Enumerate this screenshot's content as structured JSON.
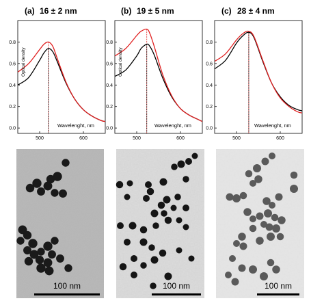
{
  "chart_data": [
    {
      "type": "line",
      "panel_label": "(a)",
      "title": "16 ± 2 nm",
      "xlabel": "Wavelenght, nm",
      "ylabel": "Optical density",
      "xlim": [
        450,
        650
      ],
      "ylim": [
        -0.05,
        1.0
      ],
      "x_ticks": [
        500,
        600
      ],
      "y_ticks": [
        0.0,
        0.2,
        0.4,
        0.6,
        0.8
      ],
      "series": [
        {
          "color": "#000000",
          "peak_x": 520,
          "peak_y": 0.74,
          "x": [
            450,
            475,
            500,
            510,
            520,
            530,
            540,
            560,
            580,
            600,
            620,
            640,
            650
          ],
          "y": [
            0.4,
            0.47,
            0.63,
            0.7,
            0.74,
            0.71,
            0.62,
            0.42,
            0.27,
            0.17,
            0.11,
            0.07,
            0.06
          ]
        },
        {
          "color": "#e02020",
          "peak_x": 520,
          "peak_y": 0.8,
          "x": [
            450,
            475,
            500,
            510,
            520,
            530,
            540,
            560,
            580,
            600,
            620,
            640,
            650
          ],
          "y": [
            0.52,
            0.6,
            0.73,
            0.78,
            0.8,
            0.76,
            0.65,
            0.43,
            0.27,
            0.17,
            0.11,
            0.07,
            0.06
          ]
        }
      ]
    },
    {
      "type": "line",
      "panel_label": "(b)",
      "title": "19 ± 5 nm",
      "xlabel": "Wavelenght, nm",
      "ylabel": "Optical density",
      "xlim": [
        450,
        650
      ],
      "ylim": [
        -0.05,
        1.0
      ],
      "x_ticks": [
        500,
        600
      ],
      "y_ticks": [
        0.0,
        0.2,
        0.4,
        0.6,
        0.8
      ],
      "series": [
        {
          "color": "#000000",
          "peak_x": 523,
          "peak_y": 0.78,
          "x": [
            450,
            475,
            500,
            510,
            523,
            530,
            540,
            560,
            580,
            600,
            620,
            640,
            650
          ],
          "y": [
            0.48,
            0.54,
            0.67,
            0.74,
            0.78,
            0.76,
            0.68,
            0.46,
            0.29,
            0.18,
            0.12,
            0.08,
            0.06
          ]
        },
        {
          "color": "#e02020",
          "peak_x": 523,
          "peak_y": 0.92,
          "x": [
            450,
            475,
            500,
            510,
            523,
            530,
            540,
            560,
            580,
            600,
            620,
            640,
            650
          ],
          "y": [
            0.67,
            0.74,
            0.86,
            0.9,
            0.92,
            0.88,
            0.76,
            0.49,
            0.3,
            0.18,
            0.12,
            0.08,
            0.06
          ]
        }
      ]
    },
    {
      "type": "line",
      "panel_label": "(c)",
      "title": "28 ± 4 nm",
      "xlabel": "Wavelenght, nm",
      "ylabel": "",
      "xlim": [
        450,
        650
      ],
      "ylim": [
        -0.05,
        1.0
      ],
      "x_ticks": [
        500,
        600
      ],
      "y_ticks": [
        0.0,
        0.2,
        0.4,
        0.6,
        0.8
      ],
      "series": [
        {
          "color": "#000000",
          "peak_x": 528,
          "peak_y": 0.89,
          "x": [
            450,
            475,
            500,
            515,
            528,
            540,
            560,
            580,
            600,
            620,
            640,
            650
          ],
          "y": [
            0.55,
            0.63,
            0.79,
            0.86,
            0.89,
            0.84,
            0.62,
            0.42,
            0.29,
            0.21,
            0.17,
            0.16
          ]
        },
        {
          "color": "#e02020",
          "peak_x": 528,
          "peak_y": 0.9,
          "x": [
            450,
            475,
            500,
            515,
            528,
            540,
            560,
            580,
            600,
            620,
            640,
            650
          ],
          "y": [
            0.62,
            0.69,
            0.82,
            0.88,
            0.9,
            0.85,
            0.63,
            0.42,
            0.28,
            0.2,
            0.15,
            0.14
          ]
        }
      ]
    }
  ],
  "micrographs": [
    {
      "scale_label": "100 nm"
    },
    {
      "scale_label": "100 nm"
    },
    {
      "scale_label": "100 nm"
    }
  ],
  "colors": {
    "series_black": "#000000",
    "series_red": "#e02020"
  }
}
